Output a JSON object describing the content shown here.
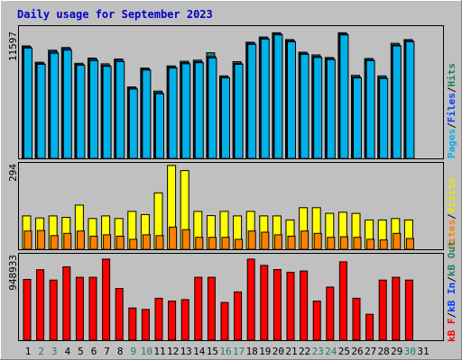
{
  "chart_data": [
    {
      "type": "bar",
      "title": "Daily usage for September 2023",
      "panel": "pages-files-hits",
      "ylabel_parts": [
        "Pages",
        "Files",
        "Hits"
      ],
      "y_tick_label": "11597",
      "ylim": [
        0,
        12500
      ],
      "categories": [
        "1",
        "2",
        "3",
        "4",
        "5",
        "6",
        "7",
        "8",
        "9",
        "10",
        "11",
        "12",
        "13",
        "14",
        "15",
        "16",
        "17",
        "18",
        "19",
        "20",
        "21",
        "22",
        "23",
        "24",
        "25",
        "26",
        "27",
        "28",
        "29",
        "30",
        "31"
      ],
      "series": [
        {
          "name": "Hits",
          "values": [
            10700,
            9150,
            10300,
            10550,
            9050,
            9550,
            9000,
            9450,
            6800,
            8600,
            6400,
            8800,
            9250,
            9350,
            10050,
            7850,
            9200,
            11050,
            11550,
            11950,
            11300,
            10100,
            9850,
            9600,
            11950,
            7900,
            9500,
            7850,
            10950,
            11300,
            null
          ]
        },
        {
          "name": "Files",
          "values": [
            10600,
            9050,
            10150,
            10450,
            8950,
            9450,
            8850,
            9350,
            6700,
            8500,
            6250,
            8700,
            9100,
            9200,
            9700,
            7750,
            9050,
            10950,
            11450,
            11850,
            11200,
            10000,
            9700,
            9500,
            11850,
            7750,
            9400,
            7700,
            10800,
            11200,
            null
          ]
        },
        {
          "name": "Pages",
          "values": [
            10500,
            8950,
            10000,
            10300,
            8850,
            9300,
            8750,
            9200,
            6600,
            8400,
            6150,
            8600,
            9000,
            9100,
            9550,
            7650,
            8950,
            10850,
            11350,
            11750,
            11100,
            9900,
            9600,
            9400,
            11750,
            7650,
            9300,
            7600,
            10700,
            11100,
            null
          ]
        }
      ]
    },
    {
      "type": "bar",
      "panel": "visits-sites",
      "ylabel_parts": [
        "Visits",
        "Sites"
      ],
      "y_tick_label": "294",
      "ylim": [
        0,
        300
      ],
      "categories": [
        "1",
        "2",
        "3",
        "4",
        "5",
        "6",
        "7",
        "8",
        "9",
        "10",
        "11",
        "12",
        "13",
        "14",
        "15",
        "16",
        "17",
        "18",
        "19",
        "20",
        "21",
        "22",
        "23",
        "24",
        "25",
        "26",
        "27",
        "28",
        "29",
        "30",
        "31"
      ],
      "series": [
        {
          "name": "Visits",
          "values": [
            117,
            110,
            117,
            112,
            155,
            108,
            117,
            108,
            133,
            122,
            198,
            294,
            276,
            133,
            118,
            133,
            117,
            133,
            117,
            117,
            103,
            146,
            146,
            126,
            130,
            126,
            103,
            103,
            108,
            103,
            null
          ]
        },
        {
          "name": "Sites",
          "values": [
            64,
            66,
            48,
            56,
            64,
            46,
            51,
            46,
            35,
            51,
            48,
            78,
            69,
            42,
            42,
            42,
            35,
            64,
            60,
            51,
            46,
            64,
            56,
            42,
            44,
            42,
            35,
            33,
            56,
            38,
            null
          ]
        }
      ]
    },
    {
      "type": "bar",
      "panel": "kbf-kbin-kbout",
      "ylabel_parts": [
        "kB F",
        "kB In",
        "kB Out"
      ],
      "y_tick_label": "948933",
      "ylim": [
        0,
        1000000
      ],
      "categories": [
        "1",
        "2",
        "3",
        "4",
        "5",
        "6",
        "7",
        "8",
        "9",
        "10",
        "11",
        "12",
        "13",
        "14",
        "15",
        "16",
        "17",
        "18",
        "19",
        "20",
        "21",
        "22",
        "23",
        "24",
        "25",
        "26",
        "27",
        "28",
        "29",
        "30",
        "31"
      ],
      "series": [
        {
          "name": "kB F",
          "values": [
            711000,
            824000,
            703000,
            858000,
            736000,
            736000,
            948933,
            605000,
            377000,
            360000,
            491000,
            458000,
            475000,
            736000,
            736000,
            441000,
            564000,
            948933,
            875000,
            826000,
            795000,
            810000,
            458000,
            621000,
            917000,
            491000,
            303000,
            703000,
            736000,
            703000,
            null
          ]
        }
      ],
      "x_day_labels": [
        "1",
        "2",
        "3",
        "4",
        "5",
        "6",
        "7",
        "8",
        "9",
        "10",
        "11",
        "12",
        "13",
        "14",
        "15",
        "16",
        "17",
        "18",
        "19",
        "20",
        "21",
        "22",
        "23",
        "24",
        "25",
        "26",
        "27",
        "28",
        "29",
        "30",
        "31"
      ],
      "weekend_days": [
        2,
        3,
        9,
        10,
        16,
        17,
        23,
        24,
        30
      ]
    }
  ]
}
